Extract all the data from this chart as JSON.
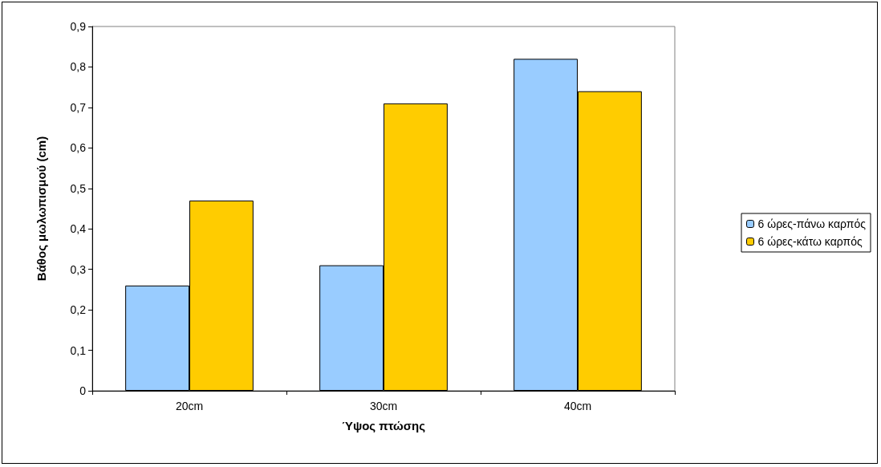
{
  "chart_data": {
    "type": "bar",
    "xlabel": "Ύψος πτώσης",
    "ylabel": "Βάθος μωλωπισμού (cm)",
    "categories": [
      "20cm",
      "30cm",
      "40cm"
    ],
    "series": [
      {
        "name": "6 ώρες-πάνω καρπός",
        "color": "#99ccff",
        "values": [
          0.26,
          0.31,
          0.82
        ]
      },
      {
        "name": "6 ώρες-κάτω καρπός",
        "color": "#ffcc00",
        "values": [
          0.47,
          0.71,
          0.74
        ]
      }
    ],
    "ylim": [
      0,
      0.9
    ],
    "yticks": [
      0,
      {
        "value": 0.1,
        "label": "0,1"
      },
      {
        "value": 0.2,
        "label": "0,2"
      },
      {
        "value": 0.3,
        "label": "0,3"
      },
      {
        "value": 0.4,
        "label": "0,4"
      },
      {
        "value": 0.5,
        "label": "0,5"
      },
      {
        "value": 0.6,
        "label": "0,6"
      },
      {
        "value": 0.7,
        "label": "0,7"
      },
      {
        "value": 0.8,
        "label": "0,8"
      },
      {
        "value": 0.9,
        "label": "0,9"
      }
    ],
    "grid": false,
    "legend": "right"
  }
}
